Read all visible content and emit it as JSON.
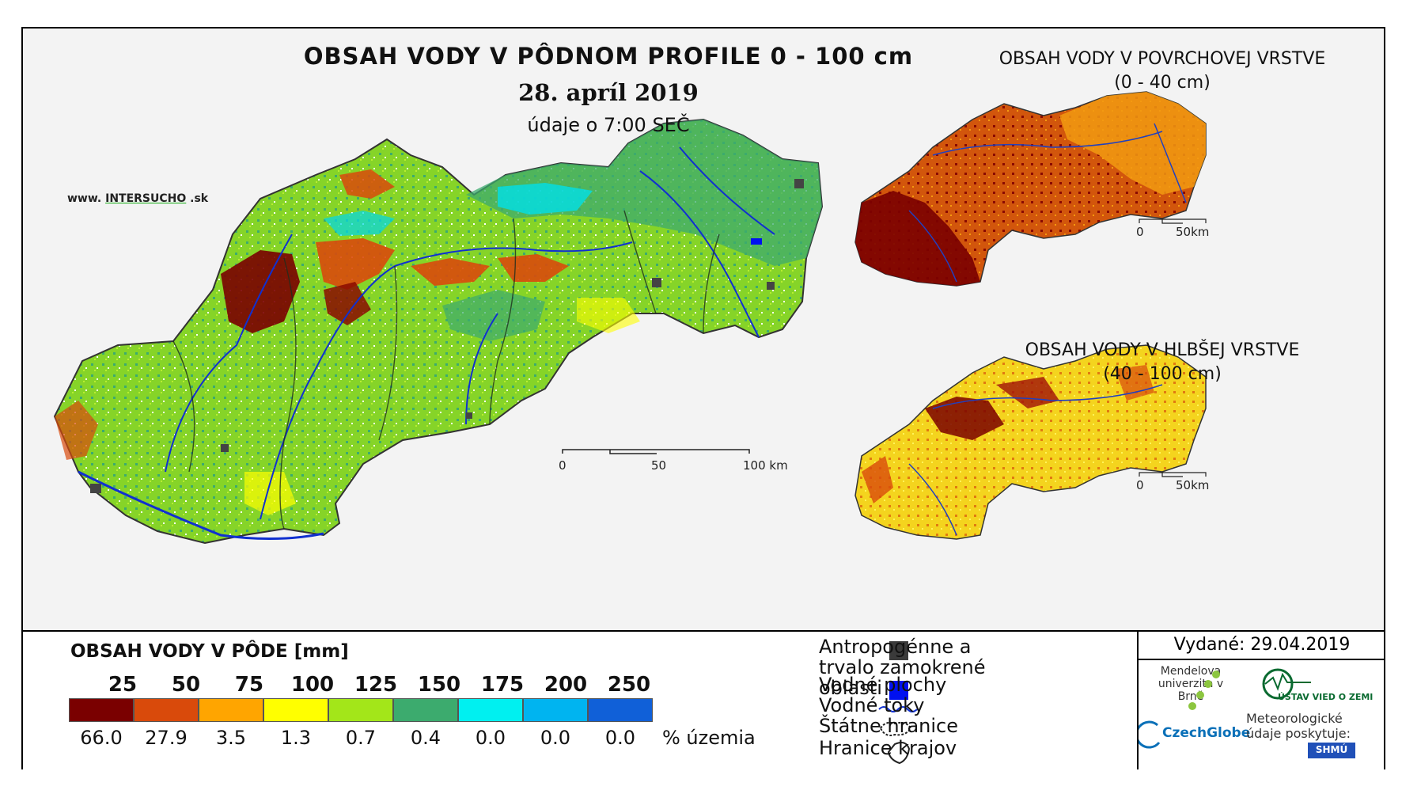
{
  "header": {
    "title": "OBSAH VODY V PÔDNOM PROFILE 0 - 100 cm",
    "date": "28. apríl 2019",
    "subtitle": "údaje o 7:00 SEČ"
  },
  "website": {
    "prefix": "www.",
    "brand": "INTERSUCHO",
    "suffix": ".sk"
  },
  "surface_map": {
    "title": "OBSAH VODY V POVRCHOVEJ VRSTVE",
    "depth": "(0 - 40 cm)"
  },
  "deep_map": {
    "title": "OBSAH VODY V HLBŠEJ VRSTVE",
    "depth": "(40 - 100 cm)"
  },
  "scalebar_main": {
    "labels": [
      "0",
      "50",
      "100 km"
    ]
  },
  "scalebar_small": {
    "labels": [
      "0",
      "50km"
    ]
  },
  "legend": {
    "title": "OBSAH VODY V PÔDE [mm]",
    "categories": [
      "25",
      "50",
      "75",
      "100",
      "125",
      "150",
      "175",
      "200",
      "250"
    ],
    "colors": [
      "#7a0000",
      "#d94a0b",
      "#ffa500",
      "#ffff00",
      "#a3e619",
      "#3cab6e",
      "#00f0f0",
      "#00b4f0",
      "#1060d8"
    ],
    "percent": [
      "66.0",
      "27.9",
      "3.5",
      "1.3",
      "0.7",
      "0.4",
      "0.0",
      "0.0",
      "0.0"
    ],
    "percent_unit": "% územia"
  },
  "symbols": {
    "anthropogenic": "Antropogénne a trvalo zamokrené oblasti",
    "water_bodies": "Vodné plochy",
    "rivers": "Vodné toky",
    "state_border": "Štátne hranice",
    "regions": "Hranice krajov"
  },
  "info": {
    "issued": "Vydané: 29.04.2019",
    "mendel": "Mendelova univerzita v Brně",
    "czechglobe": "CzechGlobe",
    "ustav": "ÚSTAV VIED O ZEMI",
    "meteo": "Meteorologické údaje poskytuje:",
    "shmu": "SHMÚ"
  },
  "map_colors": {
    "main_base": "#86d428",
    "surface_base": "#c8500a",
    "deep_base": "#f2d01c"
  }
}
